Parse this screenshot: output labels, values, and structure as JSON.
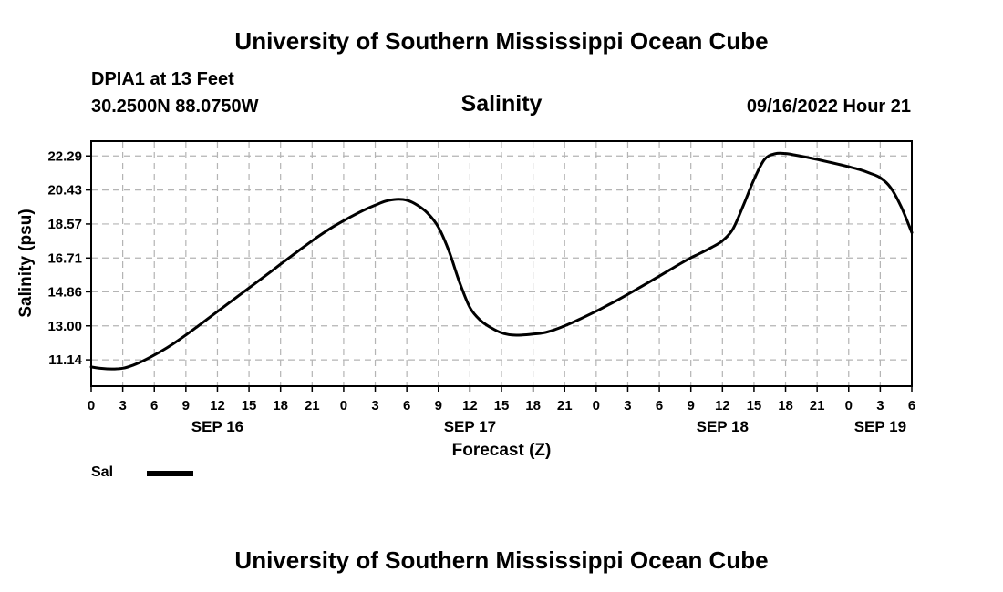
{
  "header": {
    "title": "University of Southern Mississippi Ocean Cube",
    "station": "DPIA1 at 13 Feet",
    "coordinates": "30.2500N  88.0750W",
    "timestamp": "09/16/2022 Hour 21"
  },
  "footer": {
    "title": "University of Southern Mississippi Ocean Cube"
  },
  "legend": {
    "label": "Sal",
    "color": "#000000"
  },
  "chart_data": {
    "type": "line",
    "title": "Salinity",
    "xlabel": "Forecast (Z)",
    "ylabel": "Salinity (psu)",
    "x_unit": "hours since 09/16/2022 00Z",
    "xlim": [
      0,
      78
    ],
    "ylim": [
      9.7,
      23.1
    ],
    "grid": true,
    "legend_position": "bottom-left",
    "y_ticks": [
      11.14,
      13.0,
      14.86,
      16.71,
      18.57,
      20.43,
      22.29
    ],
    "y_tick_labels": [
      "11.14",
      "13.00",
      "14.86",
      "16.71",
      "18.57",
      "20.43",
      "22.29"
    ],
    "x_ticks": [
      0,
      3,
      6,
      9,
      12,
      15,
      18,
      21,
      24,
      27,
      30,
      33,
      36,
      39,
      42,
      45,
      48,
      51,
      54,
      57,
      60,
      63,
      66,
      69,
      72,
      75,
      78
    ],
    "x_tick_labels": [
      "0",
      "3",
      "6",
      "9",
      "12",
      "15",
      "18",
      "21",
      "0",
      "3",
      "6",
      "9",
      "12",
      "15",
      "18",
      "21",
      "0",
      "3",
      "6",
      "9",
      "12",
      "15",
      "18",
      "21",
      "0",
      "3",
      "6"
    ],
    "day_labels": [
      {
        "x": 12,
        "label": "SEP 16"
      },
      {
        "x": 36,
        "label": "SEP 17"
      },
      {
        "x": 60,
        "label": "SEP 18"
      },
      {
        "x": 75,
        "label": "SEP 19"
      }
    ],
    "series": [
      {
        "name": "Sal",
        "color": "#000000",
        "x": [
          0,
          1,
          2,
          3,
          4,
          5,
          6,
          7,
          8,
          9,
          10,
          11,
          12,
          13,
          14,
          15,
          16,
          17,
          18,
          19,
          20,
          21,
          22,
          23,
          24,
          25,
          26,
          27,
          28,
          29,
          30,
          31,
          32,
          33,
          34,
          35,
          36,
          37,
          38,
          39,
          40,
          41,
          42,
          43,
          44,
          45,
          46,
          47,
          48,
          49,
          50,
          51,
          52,
          53,
          54,
          55,
          56,
          57,
          58,
          59,
          60,
          61,
          62,
          63,
          64,
          65,
          66,
          67,
          68,
          69,
          70,
          71,
          72,
          73,
          74,
          75,
          76,
          77,
          78
        ],
        "values": [
          10.75,
          10.67,
          10.64,
          10.68,
          10.85,
          11.1,
          11.4,
          11.73,
          12.1,
          12.5,
          12.92,
          13.35,
          13.78,
          14.21,
          14.64,
          15.07,
          15.5,
          15.93,
          16.37,
          16.8,
          17.23,
          17.65,
          18.05,
          18.42,
          18.75,
          19.06,
          19.35,
          19.6,
          19.82,
          19.92,
          19.87,
          19.6,
          19.15,
          18.4,
          17.1,
          15.4,
          14.0,
          13.3,
          12.9,
          12.62,
          12.5,
          12.5,
          12.55,
          12.62,
          12.78,
          13.0,
          13.25,
          13.52,
          13.8,
          14.1,
          14.4,
          14.72,
          15.05,
          15.38,
          15.72,
          16.06,
          16.4,
          16.72,
          17.0,
          17.3,
          17.65,
          18.3,
          19.6,
          21.0,
          22.1,
          22.41,
          22.42,
          22.33,
          22.22,
          22.1,
          21.97,
          21.84,
          21.7,
          21.55,
          21.35,
          21.1,
          20.55,
          19.5,
          18.1
        ]
      }
    ]
  }
}
